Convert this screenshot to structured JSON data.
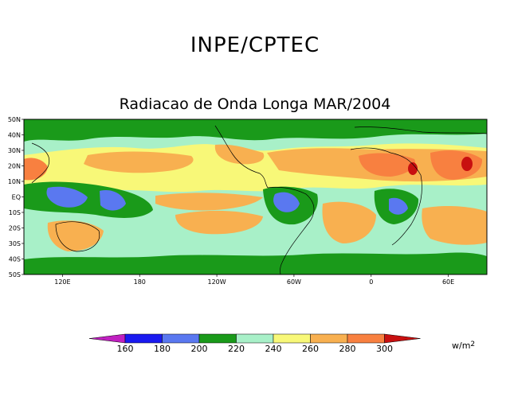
{
  "header": {
    "title": "INPE/CPTEC"
  },
  "map": {
    "title": "Radiacao de Onda Longa MAR/2004",
    "lat_labels": [
      "50N",
      "40N",
      "30N",
      "20N",
      "10N",
      "EQ",
      "10S",
      "20S",
      "30S",
      "40S",
      "50S"
    ],
    "lon_labels": [
      "120E",
      "180",
      "120W",
      "60W",
      "0",
      "60E"
    ],
    "lat_range": [
      -50,
      50
    ],
    "lon_range": [
      90,
      450
    ]
  },
  "colorbar": {
    "levels": [
      "160",
      "180",
      "200",
      "220",
      "240",
      "260",
      "280",
      "300"
    ],
    "colors": [
      "#c020c0",
      "#1a1af0",
      "#5a78f0",
      "#1a9a1a",
      "#a8f0c8",
      "#f8f878",
      "#f8b050",
      "#f88040",
      "#c81010"
    ],
    "units_base": "w/m",
    "units_exp": "2"
  }
}
